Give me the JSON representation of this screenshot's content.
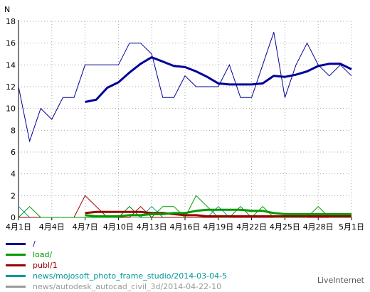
{
  "chart_data": {
    "type": "line",
    "ylabel": "N",
    "ylim": [
      0,
      18
    ],
    "yticks": [
      0,
      2,
      4,
      6,
      8,
      10,
      12,
      14,
      16,
      18
    ],
    "xticks": [
      "4月1日",
      "4月4日",
      "4月7日",
      "4月10日",
      "4月13日",
      "4月16日",
      "4月19日",
      "4月22日",
      "4月25日",
      "4月28日",
      "5月1日"
    ],
    "xtick_days": [
      1,
      4,
      7,
      10,
      13,
      16,
      19,
      22,
      25,
      28,
      31
    ],
    "x": [
      1,
      2,
      3,
      4,
      5,
      6,
      7,
      8,
      9,
      10,
      11,
      12,
      13,
      14,
      15,
      16,
      17,
      18,
      19,
      20,
      21,
      22,
      23,
      24,
      25,
      26,
      27,
      28,
      29,
      30,
      31
    ],
    "grid": true,
    "series": [
      {
        "name": "/",
        "color": "#000099",
        "values": [
          12,
          7,
          10,
          9,
          11,
          11,
          14,
          14,
          14,
          14,
          16,
          16,
          15,
          11,
          11,
          13,
          12,
          12,
          12,
          14,
          11,
          11,
          14,
          17,
          11,
          14,
          16,
          14,
          13,
          14,
          13
        ]
      },
      {
        "name": "load/",
        "color": "#009900",
        "values": [
          0,
          1,
          0,
          0,
          0,
          0,
          0,
          0,
          0,
          0,
          1,
          0,
          0,
          1,
          1,
          0,
          2,
          1,
          0,
          0,
          1,
          0,
          1,
          0,
          0,
          0,
          0,
          1,
          0,
          0,
          0
        ]
      },
      {
        "name": "publ/1",
        "color": "#990000",
        "values": [
          0,
          0,
          0,
          0,
          0,
          0,
          2,
          1,
          0,
          0,
          0,
          1,
          0,
          0,
          0,
          0,
          0,
          0,
          0,
          0,
          0,
          0,
          0,
          0,
          0,
          0,
          0,
          0,
          0,
          0,
          0
        ]
      },
      {
        "name": "news/mojosoft_photo_frame_studio/2014-03-04-5",
        "color": "#009999",
        "values": [
          1,
          0,
          0,
          0,
          0,
          0,
          0,
          0,
          0,
          0,
          1,
          0,
          1,
          0,
          0,
          0,
          0,
          0,
          1,
          0,
          0,
          0,
          0,
          0,
          0,
          0,
          0,
          0,
          0,
          0,
          0
        ]
      },
      {
        "name": "news/autodesk_autocad_civil_3d/2014-04-22-10",
        "color": "#999999",
        "values": [
          0,
          0,
          0,
          0,
          0,
          0,
          0,
          0,
          0,
          0,
          0,
          0,
          0,
          0,
          0,
          0,
          0,
          0,
          0,
          0,
          0,
          0,
          0,
          0,
          0,
          0,
          0,
          0,
          0,
          0,
          0
        ]
      }
    ],
    "averages": [
      {
        "series": "/",
        "color": "#000099",
        "x": [
          7,
          8,
          9,
          10,
          11,
          12,
          13,
          14,
          15,
          16,
          17,
          18,
          19,
          20,
          21,
          22,
          23,
          24,
          25,
          26,
          27,
          28,
          29,
          30,
          31
        ],
        "values": [
          10.6,
          10.8,
          11.9,
          12.4,
          13.3,
          14.1,
          14.7,
          14.3,
          13.9,
          13.8,
          13.4,
          12.9,
          12.3,
          12.2,
          12.2,
          12.2,
          12.3,
          13.0,
          12.9,
          13.1,
          13.4,
          13.9,
          14.1,
          14.1,
          13.6
        ]
      },
      {
        "series": "load/",
        "color": "#009900",
        "x": [
          7,
          8,
          9,
          10,
          11,
          12,
          13,
          14,
          15,
          16,
          17,
          18,
          19,
          20,
          21,
          22,
          23,
          24,
          25,
          26,
          27,
          28,
          29,
          30,
          31
        ],
        "values": [
          0.2,
          0.1,
          0.1,
          0.1,
          0.2,
          0.2,
          0.3,
          0.3,
          0.4,
          0.4,
          0.6,
          0.7,
          0.7,
          0.7,
          0.7,
          0.6,
          0.6,
          0.4,
          0.3,
          0.3,
          0.3,
          0.3,
          0.3,
          0.3,
          0.3
        ]
      },
      {
        "series": "publ/1",
        "color": "#990000",
        "x": [
          7,
          8,
          9,
          10,
          11,
          12,
          13,
          14,
          15,
          16,
          17,
          18,
          19,
          20,
          21,
          22,
          23,
          24,
          25,
          26,
          27,
          28,
          29,
          30,
          31
        ],
        "values": [
          0.4,
          0.5,
          0.5,
          0.5,
          0.5,
          0.5,
          0.4,
          0.4,
          0.3,
          0.2,
          0.2,
          0.1,
          0.1,
          0.1,
          0.1,
          0.1,
          0.1,
          0.1,
          0.1,
          0.1,
          0.1,
          0.1,
          0.1,
          0.1,
          0.1
        ]
      }
    ]
  },
  "brand": "LiveInternet"
}
